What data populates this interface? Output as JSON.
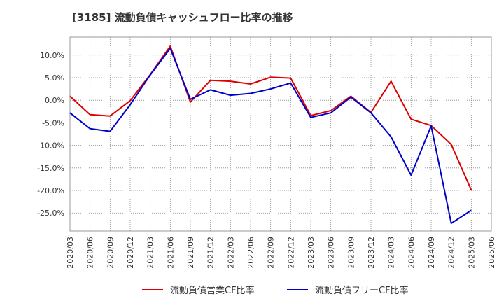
{
  "chart_data": {
    "type": "line",
    "title": "[3185]  流動負債キャッシュフロー比率の推移",
    "x": [
      "2020/03",
      "2020/06",
      "2020/09",
      "2020/12",
      "2021/03",
      "2021/06",
      "2021/09",
      "2021/12",
      "2022/03",
      "2022/06",
      "2022/09",
      "2022/12",
      "2023/03",
      "2023/06",
      "2023/09",
      "2023/12",
      "2024/03",
      "2024/06",
      "2024/09",
      "2024/12",
      "2025/03",
      "2025/06"
    ],
    "y_ticks": [
      "10.0%",
      "5.0%",
      "0.0%",
      "-5.0%",
      "-10.0%",
      "-15.0%",
      "-20.0%",
      "-25.0%"
    ],
    "ylim": [
      -29,
      14
    ],
    "grid": true,
    "legend_position": "bottom",
    "series": [
      {
        "name": "流動負債営業CF比率",
        "color": "#dd0000",
        "values": [
          0.9,
          -3.2,
          -3.5,
          -0.1,
          5.7,
          12.0,
          -0.4,
          4.4,
          4.2,
          3.6,
          5.1,
          4.9,
          -3.4,
          -2.3,
          0.9,
          -2.7,
          4.2,
          -4.2,
          -5.6,
          -9.8,
          -19.9,
          null
        ]
      },
      {
        "name": "流動負債フリーCF比率",
        "color": "#0000cc",
        "values": [
          -2.8,
          -6.3,
          -6.9,
          -1.0,
          5.6,
          11.5,
          0.2,
          2.3,
          1.1,
          1.5,
          2.5,
          3.8,
          -3.8,
          -2.8,
          0.7,
          -2.8,
          -8.1,
          -16.6,
          -5.7,
          -27.3,
          -24.4,
          null
        ]
      }
    ]
  }
}
